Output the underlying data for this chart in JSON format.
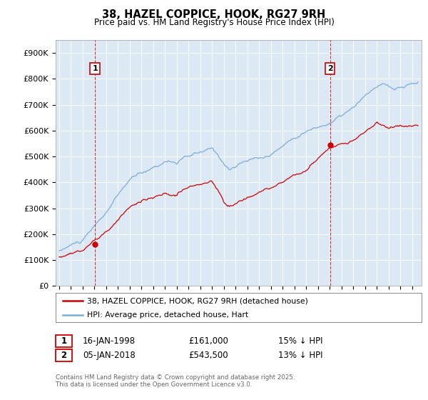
{
  "title_line1": "38, HAZEL COPPICE, HOOK, RG27 9RH",
  "title_line2": "Price paid vs. HM Land Registry's House Price Index (HPI)",
  "ylim": [
    0,
    950000
  ],
  "yticks": [
    0,
    100000,
    200000,
    300000,
    400000,
    500000,
    600000,
    700000,
    800000,
    900000
  ],
  "ytick_labels": [
    "£0",
    "£100K",
    "£200K",
    "£300K",
    "£400K",
    "£500K",
    "£600K",
    "£700K",
    "£800K",
    "£900K"
  ],
  "hpi_color": "#7aadda",
  "price_color": "#cc0000",
  "marker1_year": 1998.04,
  "marker1_price": 161000,
  "marker2_year": 2018.02,
  "marker2_price": 543500,
  "vline_color": "#cc0000",
  "legend_label_price": "38, HAZEL COPPICE, HOOK, RG27 9RH (detached house)",
  "legend_label_hpi": "HPI: Average price, detached house, Hart",
  "footnote": "Contains HM Land Registry data © Crown copyright and database right 2025.\nThis data is licensed under the Open Government Licence v3.0.",
  "bg_color": "#ffffff",
  "plot_bg_color": "#dce9f5",
  "grid_color": "#ffffff",
  "xlim_left": 1994.7,
  "xlim_right": 2025.8
}
